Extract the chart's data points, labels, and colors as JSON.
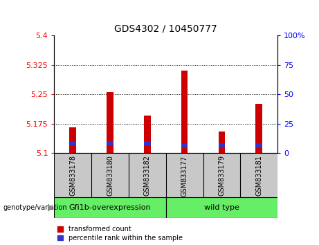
{
  "title": "GDS4302 / 10450777",
  "samples": [
    "GSM833178",
    "GSM833180",
    "GSM833182",
    "GSM833177",
    "GSM833179",
    "GSM833181"
  ],
  "red_values": [
    5.165,
    5.255,
    5.195,
    5.31,
    5.155,
    5.225
  ],
  "blue_values": [
    5.12,
    5.12,
    5.12,
    5.115,
    5.115,
    5.115
  ],
  "blue_top": [
    5.13,
    5.13,
    5.13,
    5.125,
    5.125,
    5.125
  ],
  "ymin": 5.1,
  "ymax": 5.4,
  "yticks": [
    5.1,
    5.175,
    5.25,
    5.325,
    5.4
  ],
  "ytick_labels": [
    "5.1",
    "5.175",
    "5.25",
    "5.325",
    "5.4"
  ],
  "y2ticks": [
    0,
    25,
    50,
    75,
    100
  ],
  "y2tick_labels": [
    "0",
    "25",
    "50",
    "75",
    "100%"
  ],
  "grid_values": [
    5.175,
    5.25,
    5.325
  ],
  "bar_color_red": "#CC0000",
  "bar_color_blue": "#3333CC",
  "bar_width": 0.18,
  "plot_bg": "#FFFFFF",
  "sample_bg": "#C8C8C8",
  "group1_label": "Gfi1b-overexpression",
  "group2_label": "wild type",
  "legend_red": "transformed count",
  "legend_blue": "percentile rank within the sample",
  "xlabel_left": "genotype/variation",
  "group_bg": "#66EE66",
  "title_fontsize": 10,
  "tick_fontsize": 8,
  "label_fontsize": 7
}
